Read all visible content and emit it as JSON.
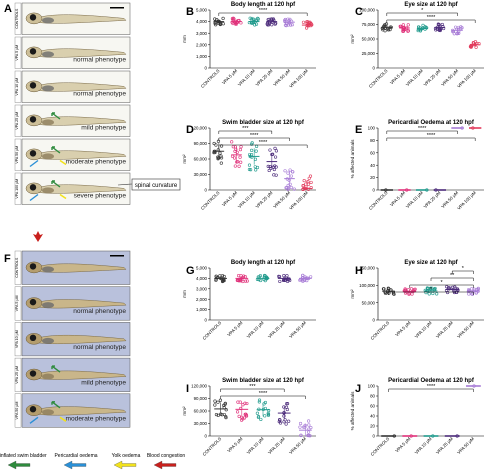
{
  "panels": {
    "A": {
      "letter": "A",
      "rows": [
        {
          "label": "CONTROLS",
          "phenotype": ""
        },
        {
          "label": "VPA 5 μM",
          "phenotype": "normal phenotype"
        },
        {
          "label": "VPA 10 μM",
          "phenotype": "normal phenotype"
        },
        {
          "label": "VPA 25 μM",
          "phenotype": "mild phenotype"
        },
        {
          "label": "VPA 50 μM",
          "phenotype": "moderate phenotype"
        },
        {
          "label": "VPA 100 μM",
          "phenotype": "severe phenotype"
        }
      ],
      "callout": "spinal curvature"
    },
    "F": {
      "letter": "F",
      "rows": [
        {
          "label": "CONTROLS",
          "phenotype": ""
        },
        {
          "label": "VPA 5 μM",
          "phenotype": "normal phenotype"
        },
        {
          "label": "VPA 10 μM",
          "phenotype": "normal phenotype"
        },
        {
          "label": "VPA 25 μM",
          "phenotype": "mild phenotype"
        },
        {
          "label": "VPA 50 μM",
          "phenotype": "moderate phenotype"
        }
      ]
    }
  },
  "legend": [
    {
      "label": "Uninflated swim bladder",
      "color": "#2e8b3d"
    },
    {
      "label": "Pericardial oedema",
      "color": "#2a8fd6"
    },
    {
      "label": "Yolk oedema",
      "color": "#f2e21c"
    },
    {
      "label": "Blood congestion",
      "color": "#c8201d"
    }
  ],
  "chart_data": [
    {
      "id": "B",
      "type": "scatter",
      "title": "Body length at 120 hpf",
      "ylabel": "mm",
      "categories": [
        "CONTROLS",
        "VPA 5 μM",
        "VPA 10 μM",
        "VPA 25 μM",
        "VPA 50 μM",
        "VPA 100 μM"
      ],
      "means": [
        4000,
        4000,
        4000,
        4000,
        3950,
        3700
      ],
      "ylim": [
        0,
        5000
      ],
      "yticks": [
        0,
        1000,
        2000,
        3000,
        4000,
        5000
      ],
      "colors": [
        "#333333",
        "#e0317a",
        "#1f9a8c",
        "#4b2a7a",
        "#a77bd6",
        "#e23a5b"
      ],
      "sig": [
        {
          "from": 0,
          "to": 5,
          "text": "****"
        }
      ]
    },
    {
      "id": "C",
      "type": "scatter",
      "title": "Eye size at 120 hpf",
      "ylabel": "mm²",
      "categories": [
        "CONTROLS",
        "VPA 5 μM",
        "VPA 10 μM",
        "VPA 25 μM",
        "VPA 50 μM",
        "VPA 100 μM"
      ],
      "means": [
        70000,
        69000,
        68000,
        70000,
        65000,
        40000
      ],
      "ylim": [
        0,
        100000
      ],
      "yticks": [
        0,
        25000,
        50000,
        75000,
        100000
      ],
      "colors": [
        "#333333",
        "#e0317a",
        "#1f9a8c",
        "#4b2a7a",
        "#a77bd6",
        "#e23a5b"
      ],
      "sig": [
        {
          "from": 0,
          "to": 4,
          "text": "*"
        },
        {
          "from": 0,
          "to": 5,
          "text": "****"
        }
      ]
    },
    {
      "id": "D",
      "type": "scatter",
      "title": "Swim bladder size at 120 hpf",
      "ylabel": "mm²",
      "categories": [
        "CONTROLS",
        "VPA 5 μM",
        "VPA 10 μM",
        "VPA 25 μM",
        "VPA 50 μM",
        "VPA 100 μM"
      ],
      "means": [
        75000,
        68000,
        65000,
        55000,
        22000,
        3000
      ],
      "ylim": [
        0,
        120000
      ],
      "yticks": [
        0,
        30000,
        60000,
        90000,
        120000
      ],
      "colors": [
        "#333333",
        "#e0317a",
        "#1f9a8c",
        "#4b2a7a",
        "#a77bd6",
        "#e23a5b"
      ],
      "sig": [
        {
          "from": 0,
          "to": 3,
          "text": "***"
        },
        {
          "from": 0,
          "to": 4,
          "text": "****"
        },
        {
          "from": 0,
          "to": 5,
          "text": "****"
        }
      ]
    },
    {
      "id": "E",
      "type": "scatter",
      "title": "Pericardial Oedema at 120 hpf",
      "ylabel": "% affected animals",
      "categories": [
        "CONTROLS",
        "VPA 5 μM",
        "VPA 10 μM",
        "VPA 25 μM",
        "VPA 50 μM",
        "VPA 100 μM"
      ],
      "means": [
        0,
        0,
        0,
        0,
        100,
        100
      ],
      "ylim": [
        0,
        100
      ],
      "yticks": [
        0,
        20,
        40,
        60,
        80,
        100
      ],
      "colors": [
        "#333333",
        "#e0317a",
        "#1f9a8c",
        "#4b2a7a",
        "#a77bd6",
        "#e23a5b"
      ],
      "sig": [
        {
          "from": 0,
          "to": 4,
          "text": "****"
        },
        {
          "from": 0,
          "to": 5,
          "text": "****"
        }
      ]
    },
    {
      "id": "G",
      "type": "scatter",
      "title": "Body length at 120 hpf",
      "ylabel": "mm",
      "categories": [
        "CONTROLS",
        "VPA 5 μM",
        "VPA 10 μM",
        "VPA 25 μM",
        "VPA 50 μM"
      ],
      "means": [
        4000,
        4000,
        4000,
        4000,
        4000
      ],
      "ylim": [
        0,
        5000
      ],
      "yticks": [
        0,
        1000,
        2000,
        3000,
        4000,
        5000
      ],
      "colors": [
        "#333333",
        "#e0317a",
        "#1f9a8c",
        "#4b2a7a",
        "#a77bd6"
      ],
      "sig": []
    },
    {
      "id": "H",
      "type": "scatter",
      "title": "Eye size at 120 hpf",
      "ylabel": "mm²",
      "categories": [
        "CONTROLS",
        "VPA 5 μM",
        "VPA 10 μM",
        "VPA 25 μM",
        "VPA 50 μM"
      ],
      "means": [
        83000,
        82000,
        84000,
        88000,
        83000
      ],
      "ylim": [
        0,
        150000
      ],
      "yticks": [
        0,
        50000,
        100000,
        150000
      ],
      "colors": [
        "#333333",
        "#e0317a",
        "#1f9a8c",
        "#4b2a7a",
        "#a77bd6"
      ],
      "sig": [
        {
          "from": 3,
          "to": 4,
          "text": "*"
        },
        {
          "from": 2,
          "to": 4,
          "text": "**"
        },
        {
          "from": 1,
          "to": 4,
          "text": "*"
        },
        {
          "from": 0,
          "to": 4,
          "text": "*"
        }
      ]
    },
    {
      "id": "I",
      "type": "scatter",
      "title": "Swim bladder size at 120 hpf",
      "ylabel": "mm²",
      "categories": [
        "CONTROLS",
        "VPA 5 μM",
        "VPA 10 μM",
        "VPA 25 μM",
        "VPA 50 μM"
      ],
      "means": [
        65000,
        64000,
        63000,
        55000,
        14000
      ],
      "ylim": [
        0,
        120000
      ],
      "yticks": [
        0,
        30000,
        60000,
        90000,
        120000
      ],
      "colors": [
        "#333333",
        "#e0317a",
        "#1f9a8c",
        "#4b2a7a",
        "#a77bd6"
      ],
      "sig": [
        {
          "from": 0,
          "to": 3,
          "text": "***"
        },
        {
          "from": 0,
          "to": 4,
          "text": "****"
        }
      ]
    },
    {
      "id": "J",
      "type": "scatter",
      "title": "Pericardial Oedema at 120 hpf",
      "ylabel": "% affected animals",
      "categories": [
        "CONTROLS",
        "VPA 5 μM",
        "VPA 10 μM",
        "VPA 25 μM",
        "VPA 50 μM"
      ],
      "means": [
        0,
        0,
        0,
        0,
        100
      ],
      "ylim": [
        0,
        100
      ],
      "yticks": [
        0,
        20,
        40,
        60,
        80,
        100
      ],
      "colors": [
        "#333333",
        "#e0317a",
        "#1f9a8c",
        "#4b2a7a",
        "#a77bd6"
      ],
      "sig": [
        {
          "from": 0,
          "to": 4,
          "text": "****"
        }
      ]
    }
  ]
}
